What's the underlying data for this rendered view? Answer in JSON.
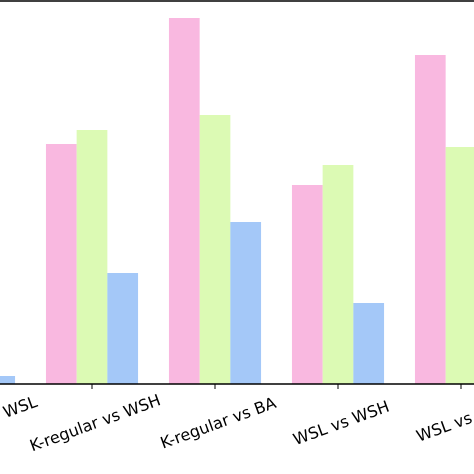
{
  "chart_data": {
    "type": "bar",
    "categories": [
      "WSL",
      "K-regular vs WSH",
      "K-regular vs BA",
      "WSL vs WSH",
      "WSL vs"
    ],
    "series": [
      {
        "color": "#f9b8e0",
        "values": [
          null,
          240,
          366,
          199,
          329
        ]
      },
      {
        "color": "#dcfab4",
        "values": [
          null,
          254,
          269,
          219,
          237
        ]
      },
      {
        "color": "#a4c8f8",
        "values": [
          8,
          111,
          162,
          81,
          null
        ]
      }
    ],
    "ylim": [
      0,
      384
    ]
  }
}
